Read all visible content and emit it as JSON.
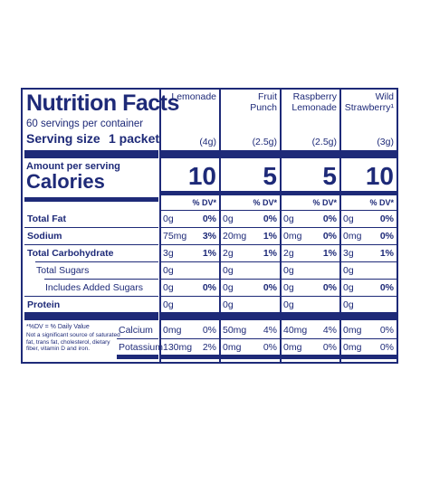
{
  "title": "Nutrition Facts",
  "servings": "60 servings per container",
  "serving_size_label": "Serving size",
  "serving_size_value": "1 packet",
  "amount_per_serving": "Amount per serving",
  "calories_label": "Calories",
  "dv_header": "% DV*",
  "columns": [
    {
      "name1": "Lemonade",
      "name2": "",
      "size": "(4g)",
      "calories": "10",
      "fat": "0g",
      "fat_dv": "0%",
      "sodium": "75mg",
      "sodium_dv": "3%",
      "carb": "3g",
      "carb_dv": "1%",
      "sugars": "0g",
      "added": "0g",
      "added_dv": "0%",
      "protein": "0g",
      "calcium": "0mg",
      "calcium_dv": "0%",
      "potassium": "130mg",
      "potassium_dv": "2%"
    },
    {
      "name1": "Fruit",
      "name2": "Punch",
      "size": "(2.5g)",
      "calories": "5",
      "fat": "0g",
      "fat_dv": "0%",
      "sodium": "20mg",
      "sodium_dv": "1%",
      "carb": "2g",
      "carb_dv": "1%",
      "sugars": "0g",
      "added": "0g",
      "added_dv": "0%",
      "protein": "0g",
      "calcium": "50mg",
      "calcium_dv": "4%",
      "potassium": "0mg",
      "potassium_dv": "0%"
    },
    {
      "name1": "Raspberry",
      "name2": "Lemonade",
      "size": "(2.5g)",
      "calories": "5",
      "fat": "0g",
      "fat_dv": "0%",
      "sodium": "0mg",
      "sodium_dv": "0%",
      "carb": "2g",
      "carb_dv": "1%",
      "sugars": "0g",
      "added": "0g",
      "added_dv": "0%",
      "protein": "0g",
      "calcium": "40mg",
      "calcium_dv": "4%",
      "potassium": "0mg",
      "potassium_dv": "0%"
    },
    {
      "name1": "Wild",
      "name2": "Strawberry¹",
      "size": "(3g)",
      "calories": "10",
      "fat": "0g",
      "fat_dv": "0%",
      "sodium": "0mg",
      "sodium_dv": "0%",
      "carb": "3g",
      "carb_dv": "1%",
      "sugars": "0g",
      "added": "0g",
      "added_dv": "0%",
      "protein": "0g",
      "calcium": "0mg",
      "calcium_dv": "0%",
      "potassium": "0mg",
      "potassium_dv": "0%"
    }
  ],
  "nutrients": {
    "fat": "Total Fat",
    "sodium": "Sodium",
    "carb": "Total Carbohydrate",
    "sugars": "Total Sugars",
    "added": "Includes Added Sugars",
    "protein": "Protein",
    "calcium": "Calcium",
    "potassium": "Potassium"
  },
  "footnote_dv": "*%DV = % Daily Value",
  "footnote_source": "Not a significant source of saturated fat, trans fat, cholesterol, dietary fiber, vitamin D and iron.",
  "colors": {
    "ink": "#1e2a78",
    "background": "#ffffff"
  }
}
